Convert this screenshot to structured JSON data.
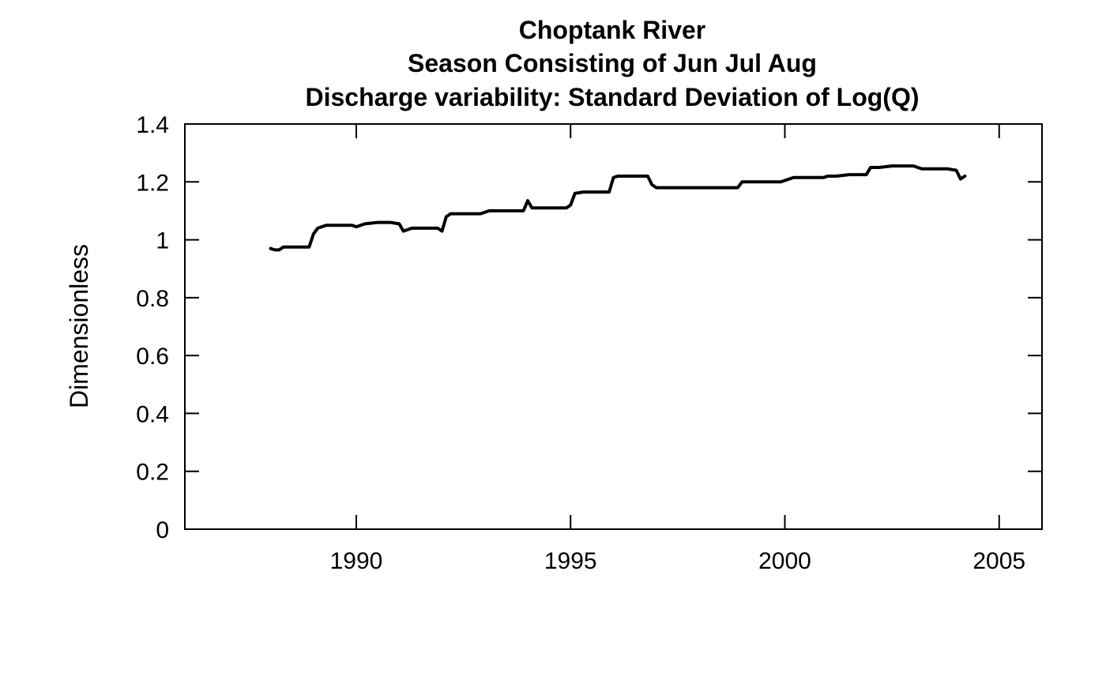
{
  "chart_data": {
    "type": "line",
    "title": "Choptank River",
    "subtitle": "Season Consisting of Jun Jul Aug",
    "subtitle2": "Discharge variability: Standard Deviation of Log(Q)",
    "xlabel": "",
    "ylabel": "Dimensionless",
    "xlim": [
      1986,
      2006
    ],
    "ylim": [
      0,
      1.4
    ],
    "x_ticks": [
      1990,
      1995,
      2000,
      2005
    ],
    "y_ticks": [
      0,
      0.2,
      0.4,
      0.6,
      0.8,
      1,
      1.2,
      1.4
    ],
    "x_tick_labels": [
      "1990",
      "1995",
      "2000",
      "2005"
    ],
    "y_tick_labels": [
      "0",
      "0.2",
      "0.4",
      "0.6",
      "0.8",
      "1",
      "1.2",
      "1.4"
    ],
    "grid": false,
    "series": [
      {
        "color": "#000000",
        "x": [
          1988.0,
          1988.1,
          1988.2,
          1988.3,
          1988.5,
          1988.8,
          1988.9,
          1989.0,
          1989.1,
          1989.3,
          1989.5,
          1989.8,
          1989.9,
          1990.0,
          1990.2,
          1990.5,
          1990.8,
          1991.0,
          1991.1,
          1991.3,
          1991.6,
          1991.9,
          1992.0,
          1992.1,
          1992.2,
          1992.4,
          1992.7,
          1992.9,
          1993.1,
          1993.3,
          1993.6,
          1993.9,
          1994.0,
          1994.1,
          1994.3,
          1994.6,
          1994.9,
          1995.0,
          1995.1,
          1995.3,
          1995.6,
          1995.9,
          1996.0,
          1996.1,
          1996.3,
          1996.6,
          1996.8,
          1996.9,
          1997.0,
          1997.2,
          1997.5,
          1997.8,
          1998.0,
          1998.3,
          1998.6,
          1998.9,
          1999.0,
          1999.1,
          1999.3,
          1999.6,
          1999.9,
          2000.0,
          2000.2,
          2000.5,
          2000.8,
          2000.9,
          2001.0,
          2001.2,
          2001.5,
          2001.8,
          2001.9,
          2002.0,
          2002.2,
          2002.5,
          2002.8,
          2003.0,
          2003.1,
          2003.2,
          2003.5,
          2003.8,
          2004.0,
          2004.1,
          2004.2
        ],
        "y": [
          0.97,
          0.965,
          0.965,
          0.975,
          0.975,
          0.975,
          0.975,
          1.02,
          1.04,
          1.05,
          1.05,
          1.05,
          1.05,
          1.045,
          1.055,
          1.06,
          1.06,
          1.055,
          1.03,
          1.04,
          1.04,
          1.04,
          1.03,
          1.08,
          1.09,
          1.09,
          1.09,
          1.09,
          1.1,
          1.1,
          1.1,
          1.1,
          1.135,
          1.11,
          1.11,
          1.11,
          1.11,
          1.12,
          1.16,
          1.165,
          1.165,
          1.165,
          1.215,
          1.22,
          1.22,
          1.22,
          1.22,
          1.19,
          1.18,
          1.18,
          1.18,
          1.18,
          1.18,
          1.18,
          1.18,
          1.18,
          1.2,
          1.2,
          1.2,
          1.2,
          1.2,
          1.205,
          1.215,
          1.215,
          1.215,
          1.215,
          1.22,
          1.22,
          1.225,
          1.225,
          1.225,
          1.25,
          1.25,
          1.255,
          1.255,
          1.255,
          1.25,
          1.245,
          1.245,
          1.245,
          1.24,
          1.21,
          1.22
        ]
      }
    ]
  }
}
